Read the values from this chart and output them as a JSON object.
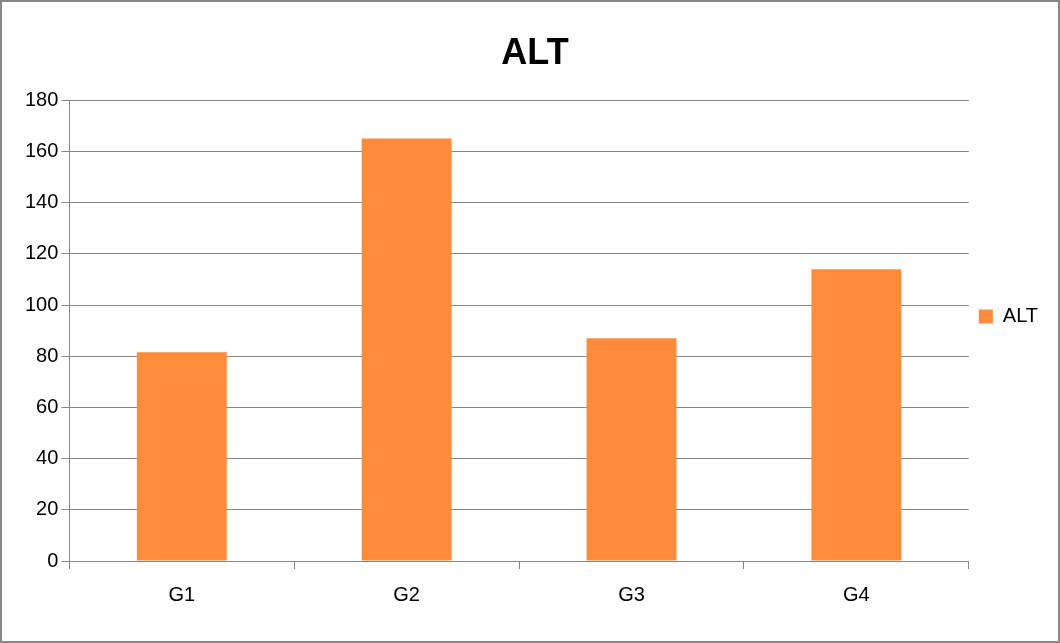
{
  "chart_data": {
    "type": "bar",
    "title": "ALT",
    "categories": [
      "G1",
      "G2",
      "G3",
      "G4"
    ],
    "series": [
      {
        "name": "ALT",
        "color": "#ff8c3a",
        "values": [
          81.5,
          165,
          87,
          114
        ]
      }
    ],
    "ylim": [
      0,
      180
    ],
    "yticks": [
      0,
      20,
      40,
      60,
      80,
      100,
      120,
      140,
      160,
      180
    ],
    "grid": "y",
    "legend": "right"
  }
}
